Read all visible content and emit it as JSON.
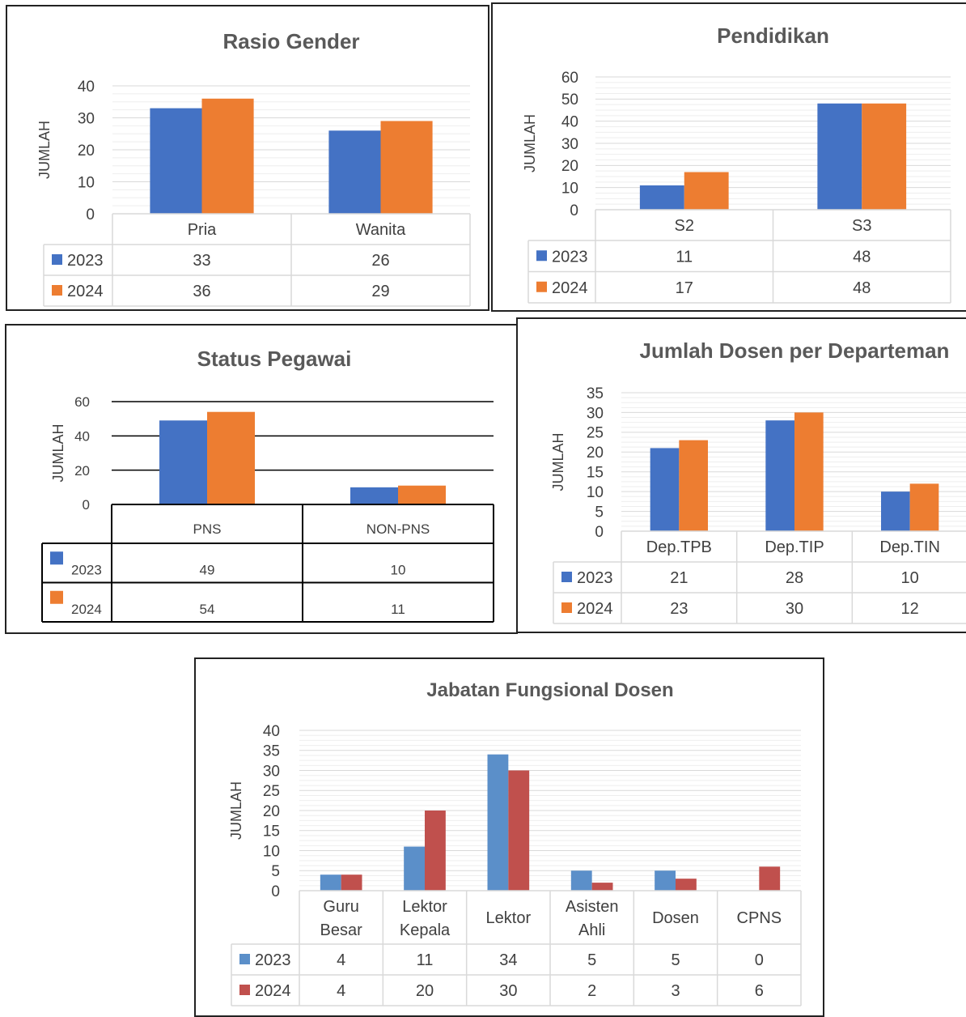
{
  "chart_data": [
    {
      "type": "bar",
      "title": "Rasio Gender",
      "ylabel": "JUMLAH",
      "categories": [
        "Pria",
        "Wanita"
      ],
      "ylim": [
        0,
        40
      ],
      "yticks": [
        "0",
        "10",
        "20",
        "30",
        "40"
      ],
      "series": [
        {
          "name": "2023",
          "values": [
            33,
            26
          ]
        },
        {
          "name": "2024",
          "values": [
            36,
            29
          ]
        }
      ],
      "colors": [
        "#4472C4",
        "#ED7D31"
      ],
      "grid": true,
      "data_table": true
    },
    {
      "type": "bar",
      "title": "Pendidikan",
      "ylabel": "JUMLAH",
      "categories": [
        "S2",
        "S3"
      ],
      "ylim": [
        0,
        60
      ],
      "yticks": [
        "0",
        "10",
        "20",
        "30",
        "40",
        "50",
        "60"
      ],
      "series": [
        {
          "name": "2023",
          "values": [
            11,
            48
          ]
        },
        {
          "name": "2024",
          "values": [
            17,
            48
          ]
        }
      ],
      "colors": [
        "#4472C4",
        "#ED7D31"
      ],
      "grid": true,
      "data_table": true
    },
    {
      "type": "bar",
      "title": "Status Pegawai",
      "ylabel": "JUMLAH",
      "categories": [
        "PNS",
        "NON-PNS"
      ],
      "ylim": [
        0,
        60
      ],
      "yticks": [
        "0",
        "20",
        "40",
        "60"
      ],
      "series": [
        {
          "name": "2023",
          "values": [
            49,
            10
          ]
        },
        {
          "name": "2024",
          "values": [
            54,
            11
          ]
        }
      ],
      "colors": [
        "#4472C4",
        "#ED7D31"
      ],
      "grid": true,
      "data_table": true
    },
    {
      "type": "bar",
      "title": "Jumlah Dosen per Departeman",
      "ylabel": "JUMLAH",
      "categories": [
        "Dep.TPB",
        "Dep.TIP",
        "Dep.TIN"
      ],
      "ylim": [
        0,
        35
      ],
      "yticks": [
        "0",
        "5",
        "10",
        "15",
        "20",
        "25",
        "30",
        "35"
      ],
      "series": [
        {
          "name": "2023",
          "values": [
            21,
            28,
            10
          ]
        },
        {
          "name": "2024",
          "values": [
            23,
            30,
            12
          ]
        }
      ],
      "colors": [
        "#4472C4",
        "#ED7D31"
      ],
      "grid": true,
      "data_table": true
    },
    {
      "type": "bar",
      "title": "Jabatan Fungsional Dosen",
      "ylabel": "JUMLAH",
      "categories": [
        [
          "Guru",
          "Besar"
        ],
        [
          "Lektor",
          "Kepala"
        ],
        [
          "Lektor"
        ],
        [
          "Asisten",
          "Ahli"
        ],
        [
          "Dosen"
        ],
        [
          "CPNS"
        ]
      ],
      "ylim": [
        0,
        40
      ],
      "yticks": [
        "0",
        "5",
        "10",
        "15",
        "20",
        "25",
        "30",
        "35",
        "40"
      ],
      "series": [
        {
          "name": "2023",
          "values": [
            4,
            11,
            34,
            5,
            5,
            0
          ]
        },
        {
          "name": "2024",
          "values": [
            4,
            20,
            30,
            2,
            3,
            6
          ]
        }
      ],
      "colors": [
        "#5B8FC9",
        "#C0504D"
      ],
      "grid": true,
      "data_table": true
    }
  ]
}
